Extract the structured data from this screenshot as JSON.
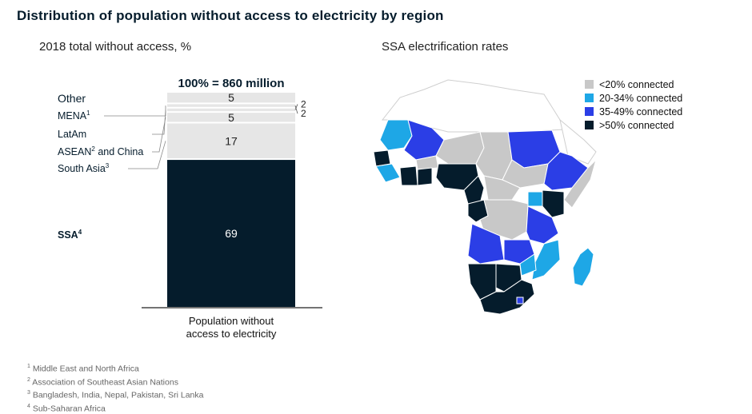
{
  "title": "Distribution of population without access to electricity by region",
  "left_subtitle": "2018 total without access, %",
  "right_subtitle": "SSA electrification rates",
  "chart_data": [
    {
      "type": "bar",
      "stacked": true,
      "title": "2018 total without access, %",
      "total_label": "100% = 860 million",
      "categories": [
        "Population without access to electricity"
      ],
      "xlabel": "Population without access to electricity",
      "ylim": [
        0,
        100
      ],
      "series": [
        {
          "name": "SSA",
          "sup": "4",
          "value": 69,
          "label": "69",
          "color": "#051c2c",
          "text_color": "#ffffff"
        },
        {
          "name": "South Asia",
          "sup": "3",
          "value": 17,
          "label": "17",
          "color": "#e6e6e6",
          "text_color": "#222222"
        },
        {
          "name": "ASEAN",
          "sup": "2",
          "name_suffix": " and China",
          "value": 5,
          "label": "5",
          "color": "#e6e6e6",
          "text_color": "#222222"
        },
        {
          "name": "LatAm",
          "sup": "",
          "value": 2,
          "label": "2",
          "color": "#e6e6e6",
          "text_color": "#222222"
        },
        {
          "name": "MENA",
          "sup": "1",
          "value": 2,
          "label": "2",
          "color": "#e6e6e6",
          "text_color": "#222222"
        },
        {
          "name": "Other",
          "sup": "",
          "value": 5,
          "label": "5",
          "color": "#e6e6e6",
          "text_color": "#222222"
        }
      ]
    }
  ],
  "xlabel_lines": [
    "Population without",
    "access to electricity"
  ],
  "map": {
    "title": "SSA electrification rates",
    "legend": [
      {
        "label": "<20% connected",
        "color": "#c8c8c8"
      },
      {
        "label": "20-34% connected",
        "color": "#1ea7e6"
      },
      {
        "label": "35-49% connected",
        "color": "#2b3ee6"
      },
      {
        "label": ">50% connected",
        "color": "#051c2c"
      }
    ]
  },
  "footnotes": [
    {
      "num": "1",
      "text": "Middle East and North Africa"
    },
    {
      "num": "2",
      "text": "Association of Southeast Asian Nations"
    },
    {
      "num": "3",
      "text": "Bangladesh, India, Nepal, Pakistan, Sri Lanka"
    },
    {
      "num": "4",
      "text": "Sub-Saharan Africa"
    }
  ]
}
